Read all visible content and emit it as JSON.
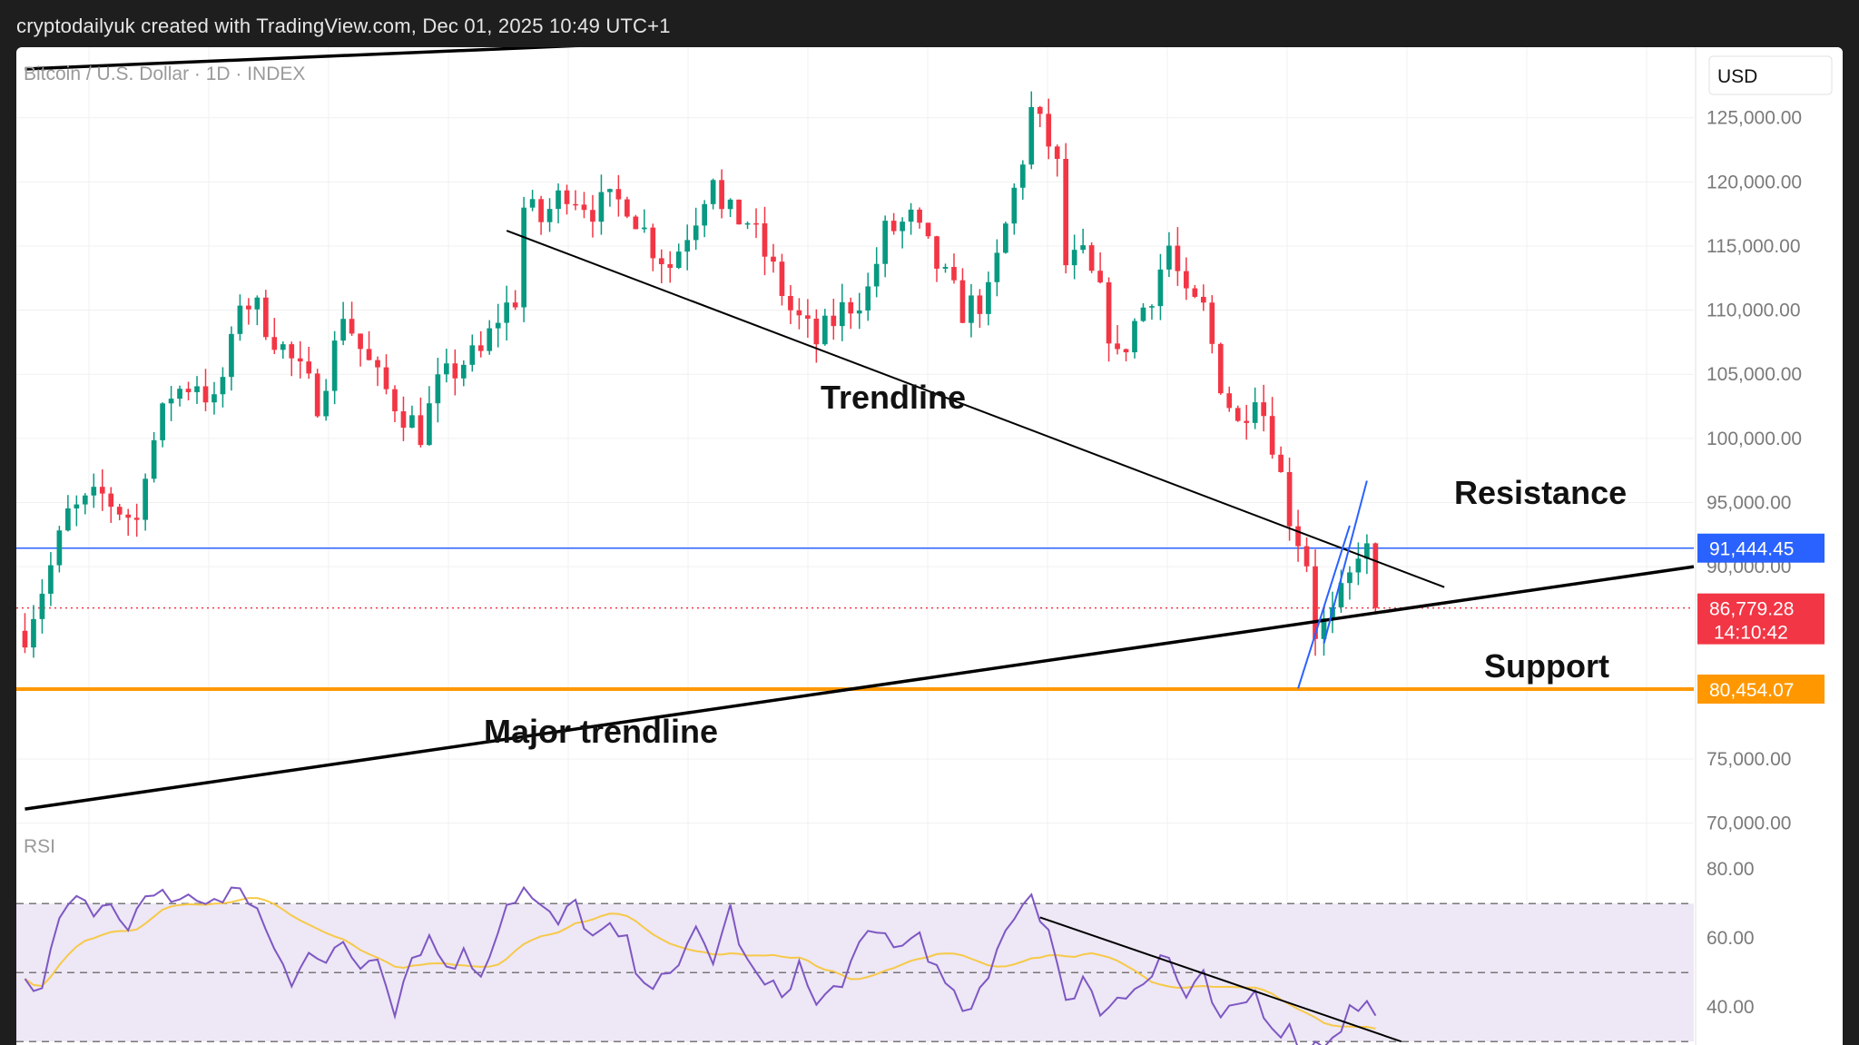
{
  "header": {
    "caption": "cryptodailyuk created with TradingView.com, Dec 01, 2025 10:49 UTC+1"
  },
  "chart_data": {
    "type": "candlestick",
    "symbol_title": "Bitcoin / U.S. Dollar · 1D · INDEX",
    "currency": "USD",
    "y_ticks": [
      "125,000.00",
      "120,000.00",
      "115,000.00",
      "110,000.00",
      "105,000.00",
      "100,000.00",
      "95,000.00",
      "90,000.00",
      "75,000.00",
      "70,000.00"
    ],
    "y_tick_values": [
      125000,
      120000,
      115000,
      110000,
      105000,
      100000,
      95000,
      90000,
      75000,
      70000
    ],
    "ylim": [
      67500,
      130500
    ],
    "price_labels": {
      "resistance": {
        "value": 91444.45,
        "text": "91,444.45",
        "color": "#2962ff"
      },
      "last": {
        "value": 86779.28,
        "text": "86,779.28",
        "countdown": "14:10:42",
        "color": "#f23645"
      },
      "support": {
        "value": 80454.07,
        "text": "80,454.07",
        "color": "#ff9800"
      }
    },
    "annotations": {
      "trendline": "Trendline",
      "resistance": "Resistance",
      "support": "Support",
      "major_trendline": "Major trendline"
    },
    "lines": {
      "upper_channel": [
        [
          0,
          128800
        ],
        [
          194,
          134300
        ]
      ],
      "major_trendline": [
        [
          0,
          71100
        ],
        [
          194,
          90000
        ]
      ],
      "trendline": [
        [
          56,
          116200
        ],
        [
          165,
          88400
        ]
      ],
      "flag_left": [
        [
          148,
          80500
        ],
        [
          154,
          93200
        ]
      ],
      "flag_right": [
        [
          151,
          84000
        ],
        [
          156,
          96700
        ]
      ]
    },
    "ohlc_keypoints": [
      [
        0,
        85000
      ],
      [
        3,
        90000
      ],
      [
        5,
        94000
      ],
      [
        9,
        95500
      ],
      [
        13,
        93500
      ],
      [
        14,
        98000
      ],
      [
        17,
        103500
      ],
      [
        20,
        104500
      ],
      [
        22,
        102500
      ],
      [
        24,
        107000
      ],
      [
        25,
        111000
      ],
      [
        27,
        110000
      ],
      [
        30,
        107000
      ],
      [
        32,
        105000
      ],
      [
        34,
        103000
      ],
      [
        36,
        107000
      ],
      [
        37,
        110000
      ],
      [
        39,
        107000
      ],
      [
        41,
        104500
      ],
      [
        44,
        102000
      ],
      [
        46,
        100500
      ],
      [
        48,
        104000
      ],
      [
        51,
        106000
      ],
      [
        53,
        106500
      ],
      [
        55,
        109500
      ],
      [
        57,
        111000
      ],
      [
        58,
        118000
      ],
      [
        60,
        117000
      ],
      [
        63,
        119500
      ],
      [
        66,
        118000
      ],
      [
        70,
        118500
      ],
      [
        73,
        115000
      ],
      [
        75,
        113500
      ],
      [
        78,
        117500
      ],
      [
        80,
        121000
      ],
      [
        81,
        117500
      ],
      [
        84,
        117000
      ],
      [
        87,
        113000
      ],
      [
        89,
        110000
      ],
      [
        92,
        107500
      ],
      [
        95,
        110000
      ],
      [
        98,
        111500
      ],
      [
        100,
        116000
      ],
      [
        103,
        117000
      ],
      [
        106,
        113500
      ],
      [
        109,
        110000
      ],
      [
        112,
        111000
      ],
      [
        114,
        116500
      ],
      [
        116,
        122000
      ],
      [
        117,
        125500
      ],
      [
        119,
        123000
      ],
      [
        120,
        121000
      ],
      [
        121,
        113500
      ],
      [
        123,
        114000
      ],
      [
        125,
        111000
      ],
      [
        127,
        106000
      ],
      [
        129,
        109000
      ],
      [
        131,
        111500
      ],
      [
        133,
        115000
      ],
      [
        135,
        110500
      ],
      [
        137,
        110000
      ],
      [
        139,
        104500
      ],
      [
        141,
        101000
      ],
      [
        143,
        104000
      ],
      [
        145,
        100000
      ],
      [
        147,
        94000
      ],
      [
        149,
        90500
      ],
      [
        150,
        85000
      ],
      [
        152,
        86000
      ],
      [
        154,
        89000
      ],
      [
        155,
        91500
      ],
      [
        156,
        91000
      ],
      [
        157,
        87500
      ]
    ],
    "rsi": {
      "label": "RSI",
      "y_ticks": [
        "80.00",
        "60.00",
        "40.00"
      ],
      "y_tick_values": [
        80,
        60,
        40
      ],
      "ylim": [
        29,
        84
      ],
      "bands": [
        70,
        50,
        30
      ],
      "rsi_keypoints": [
        [
          0,
          50
        ],
        [
          2,
          45
        ],
        [
          4,
          65
        ],
        [
          6,
          70
        ],
        [
          8,
          68
        ],
        [
          10,
          70
        ],
        [
          12,
          62
        ],
        [
          14,
          72
        ],
        [
          16,
          74
        ],
        [
          18,
          70
        ],
        [
          20,
          72
        ],
        [
          23,
          70
        ],
        [
          25,
          74
        ],
        [
          27,
          68
        ],
        [
          29,
          56
        ],
        [
          31,
          48
        ],
        [
          33,
          58
        ],
        [
          35,
          52
        ],
        [
          37,
          58
        ],
        [
          39,
          52
        ],
        [
          41,
          56
        ],
        [
          43,
          40
        ],
        [
          45,
          55
        ],
        [
          47,
          60
        ],
        [
          49,
          52
        ],
        [
          51,
          55
        ],
        [
          53,
          50
        ],
        [
          56,
          70
        ],
        [
          58,
          74
        ],
        [
          60,
          68
        ],
        [
          62,
          64
        ],
        [
          64,
          70
        ],
        [
          66,
          60
        ],
        [
          68,
          62
        ],
        [
          70,
          58
        ],
        [
          72,
          44
        ],
        [
          74,
          52
        ],
        [
          76,
          50
        ],
        [
          78,
          62
        ],
        [
          80,
          54
        ],
        [
          82,
          68
        ],
        [
          84,
          52
        ],
        [
          86,
          46
        ],
        [
          88,
          44
        ],
        [
          90,
          52
        ],
        [
          92,
          40
        ],
        [
          94,
          45
        ],
        [
          96,
          52
        ],
        [
          98,
          60
        ],
        [
          100,
          61
        ],
        [
          102,
          57
        ],
        [
          104,
          62
        ],
        [
          106,
          50
        ],
        [
          108,
          42
        ],
        [
          110,
          38
        ],
        [
          112,
          48
        ],
        [
          114,
          64
        ],
        [
          116,
          70
        ],
        [
          117,
          73
        ],
        [
          119,
          62
        ],
        [
          121,
          40
        ],
        [
          123,
          50
        ],
        [
          125,
          38
        ],
        [
          127,
          44
        ],
        [
          129,
          46
        ],
        [
          131,
          48
        ],
        [
          132,
          55
        ],
        [
          133,
          54
        ],
        [
          135,
          42
        ],
        [
          137,
          48
        ],
        [
          139,
          35
        ],
        [
          141,
          40
        ],
        [
          143,
          44
        ],
        [
          145,
          35
        ],
        [
          147,
          33
        ],
        [
          149,
          28
        ],
        [
          151,
          30
        ],
        [
          153,
          35
        ],
        [
          154,
          39
        ],
        [
          156,
          41
        ],
        [
          157,
          36
        ]
      ],
      "rsi_trendline": [
        [
          118,
          66
        ],
        [
          160,
          30
        ]
      ]
    },
    "x_range": [
      -1,
      194
    ],
    "colors": {
      "up": "#089981",
      "down": "#f23645",
      "rsi_line": "#7e57c2",
      "rsi_ma": "#f7c948",
      "rsi_band_fill": "#ede7f6",
      "grid": "#f0f0f0"
    }
  }
}
